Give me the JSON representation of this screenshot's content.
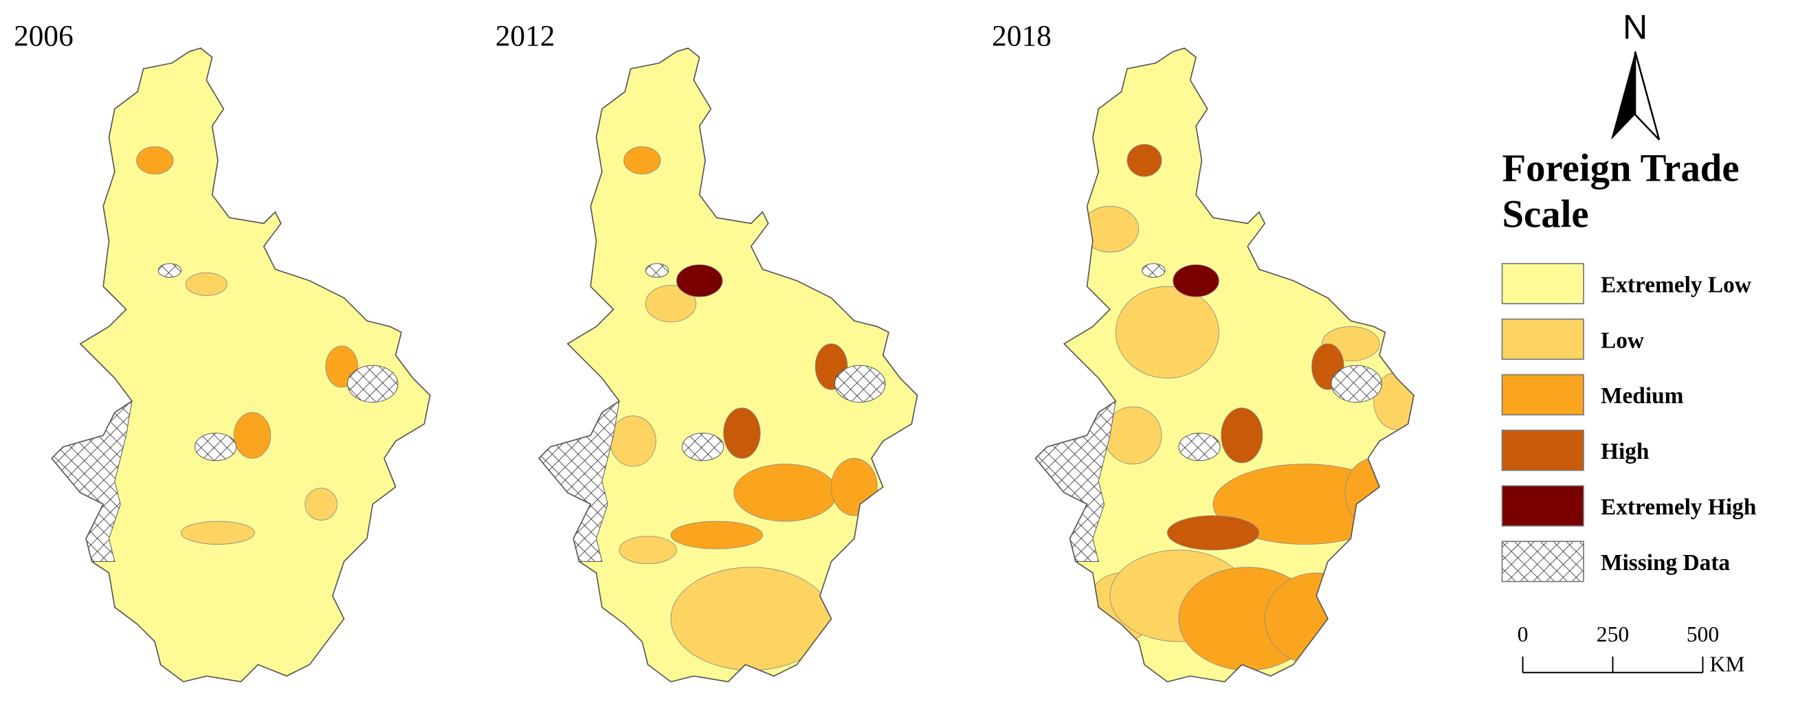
{
  "maps": [
    {
      "year": "2006"
    },
    {
      "year": "2012"
    },
    {
      "year": "2018"
    }
  ],
  "north_arrow": "N",
  "legend": {
    "title_lines": [
      "Foreign Trade",
      "Scale"
    ],
    "items": [
      {
        "label": "Extremely Low",
        "color": "#fefb97"
      },
      {
        "label": "Low",
        "color": "#fdd462"
      },
      {
        "label": "Medium",
        "color": "#fba51f"
      },
      {
        "label": "High",
        "color": "#c85a0a"
      },
      {
        "label": "Extremely High",
        "color": "#7a0000"
      },
      {
        "label": "Missing Data"
      }
    ]
  },
  "scale_bar": {
    "ticks": [
      0,
      250,
      500
    ],
    "unit": "KM"
  }
}
